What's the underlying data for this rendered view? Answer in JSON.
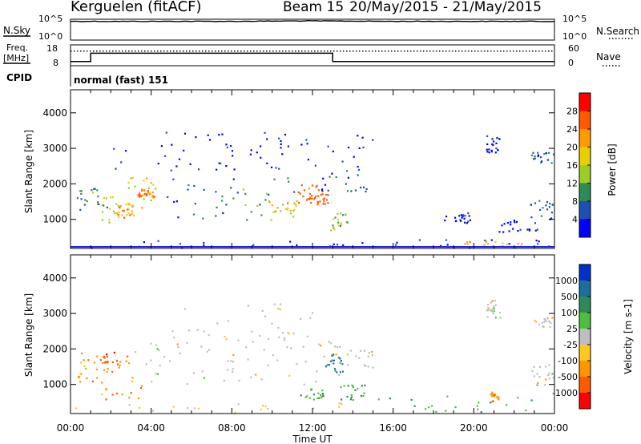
{
  "header": {
    "site": "Kerguelen (fitACF)",
    "beam_label": "Beam 15",
    "date_range": "20/May/2015 - 21/May/2015"
  },
  "noise_panel": {
    "left_label": "N.Sky",
    "left_ticks": [
      "10^5",
      "10^0"
    ],
    "right_ticks": [
      "10^5",
      "10^0"
    ],
    "right_label": "N.Search"
  },
  "freq_panel": {
    "left_label_1": "Freq.",
    "left_label_2": "[MHz]",
    "left_ticks": [
      "18",
      "8"
    ],
    "right_ticks": [
      "60",
      "0"
    ],
    "right_label": "Nave"
  },
  "cpid": {
    "label": "CPID",
    "mode": "normal (fast) 151"
  },
  "xlabel": "Time UT",
  "colors": {
    "grey_scatter": "#bebebe",
    "axis": "#000000"
  },
  "chart_data": [
    {
      "type": "line",
      "title": "N.Sky / N.Search",
      "x_range": [
        0,
        24
      ],
      "series": [
        {
          "name": "N.Sky",
          "x": [
            0,
            4,
            8,
            12,
            16,
            20,
            24
          ],
          "y": [
            4.5,
            4.5,
            4.5,
            4.6,
            4.5,
            4.5,
            4.5
          ]
        }
      ]
    },
    {
      "type": "line",
      "title": "Freq. [MHz] / Nave",
      "x_range": [
        0,
        24
      ],
      "ylim": [
        8,
        18
      ],
      "series": [
        {
          "name": "Freq.",
          "x": [
            0,
            1.0,
            1.0,
            13.0,
            13.0,
            24
          ],
          "y": [
            10,
            10,
            14,
            14,
            10,
            10
          ]
        },
        {
          "name": "Nave",
          "x": [
            0,
            24
          ],
          "y": [
            15,
            15
          ]
        }
      ]
    },
    {
      "type": "heatmap",
      "title": "Power [dB]",
      "ylabel": "Slant Range [km]",
      "xlabel": "Time UT",
      "x_range": [
        0,
        24
      ],
      "ylim": [
        180,
        4650
      ],
      "yticks": [
        1000,
        2000,
        3000,
        4000
      ],
      "xticks": [
        "00:00",
        "04:00",
        "08:00",
        "12:00",
        "16:00",
        "20:00",
        "00:00"
      ],
      "colorbar": {
        "label": "Power [dB]",
        "ticks": [
          "28",
          "24",
          "20",
          "16",
          "12",
          "8",
          "4"
        ],
        "colors": [
          "#ff0000",
          "#ff5a00",
          "#ff9a00",
          "#e8d000",
          "#9ccc28",
          "#2e8b57",
          "#1e4fb4",
          "#0000ff"
        ]
      },
      "regions": [
        {
          "t0": 0.3,
          "t1": 1.8,
          "r0": 1200,
          "r1": 1900,
          "level": 3
        },
        {
          "t0": 1.5,
          "t1": 2.9,
          "r0": 900,
          "r1": 1700,
          "level": 4
        },
        {
          "t0": 2.2,
          "t1": 3.2,
          "r0": 1050,
          "r1": 1500,
          "level": 6
        },
        {
          "t0": 2.8,
          "t1": 4.4,
          "r0": 1300,
          "r1": 2200,
          "level": 5
        },
        {
          "t0": 3.3,
          "t1": 4.2,
          "r0": 1650,
          "r1": 1850,
          "level": 7
        },
        {
          "t0": 4.2,
          "t1": 8.2,
          "r0": 1000,
          "r1": 2200,
          "level": 2
        },
        {
          "t0": 8.2,
          "t1": 11.4,
          "r0": 1000,
          "r1": 2300,
          "level": 3
        },
        {
          "t0": 9.8,
          "t1": 11.2,
          "r0": 1150,
          "r1": 1550,
          "level": 5
        },
        {
          "t0": 11.2,
          "t1": 12.6,
          "r0": 1300,
          "r1": 2000,
          "level": 7
        },
        {
          "t0": 11.8,
          "t1": 12.9,
          "r0": 1450,
          "r1": 1750,
          "level": 8
        },
        {
          "t0": 12.4,
          "t1": 14.9,
          "r0": 1800,
          "r1": 2500,
          "level": 2
        },
        {
          "t0": 12.8,
          "t1": 13.8,
          "r0": 700,
          "r1": 1200,
          "level": 4
        },
        {
          "t0": 2.0,
          "t1": 15.0,
          "r0": 2400,
          "r1": 3500,
          "level": 1
        },
        {
          "t0": 0.0,
          "t1": 15.0,
          "r0": 200,
          "r1": 420,
          "level": 1
        },
        {
          "t0": 15.0,
          "t1": 24.0,
          "r0": 200,
          "r1": 450,
          "level": 1
        },
        {
          "t0": 19.5,
          "t1": 23.2,
          "r0": 220,
          "r1": 400,
          "level": 5
        },
        {
          "t0": 20.6,
          "t1": 21.3,
          "r0": 2900,
          "r1": 3400,
          "level": 1
        },
        {
          "t0": 22.8,
          "t1": 24.0,
          "r0": 2600,
          "r1": 2900,
          "level": 2
        },
        {
          "t0": 22.8,
          "t1": 24.0,
          "r0": 1000,
          "r1": 1600,
          "level": 2
        },
        {
          "t0": 18.5,
          "t1": 19.8,
          "r0": 900,
          "r1": 1200,
          "level": 1
        },
        {
          "t0": 21.2,
          "t1": 23.2,
          "r0": 600,
          "r1": 1000,
          "level": 1
        }
      ]
    },
    {
      "type": "heatmap",
      "title": "Velocity [m s-1]",
      "ylabel": "Slant Range [km]",
      "xlabel": "Time UT",
      "x_range": [
        0,
        24
      ],
      "ylim": [
        180,
        4650
      ],
      "yticks": [
        1000,
        2000,
        3000,
        4000
      ],
      "xticks": [
        "00:00",
        "04:00",
        "08:00",
        "12:00",
        "16:00",
        "20:00",
        "00:00"
      ],
      "colorbar": {
        "label": "Velocity [m s-1]",
        "ticks": [
          "1000",
          "500",
          "100",
          "25",
          "-25",
          "-100",
          "-500",
          "-1000"
        ],
        "colors": [
          "#0032c8",
          "#1e6e9c",
          "#2e8b57",
          "#4cc03c",
          "#bebebe",
          "#ffc820",
          "#ff9600",
          "#ff5a00",
          "#ff0000"
        ]
      },
      "regions": [
        {
          "t0": 0.3,
          "t1": 1.6,
          "r0": 1100,
          "r1": 1900,
          "level": 6
        },
        {
          "t0": 1.5,
          "t1": 3.6,
          "r0": 600,
          "r1": 1700,
          "level": 6
        },
        {
          "t0": 1.6,
          "t1": 2.8,
          "r0": 1300,
          "r1": 2000,
          "level": 7
        },
        {
          "t0": 3.0,
          "t1": 13.5,
          "r0": 1000,
          "r1": 2300,
          "level": 4
        },
        {
          "t0": 5.0,
          "t1": 12.0,
          "r0": 2300,
          "r1": 3300,
          "level": 4
        },
        {
          "t0": 12.6,
          "t1": 13.5,
          "r0": 1300,
          "r1": 1900,
          "level": 2
        },
        {
          "t0": 13.0,
          "t1": 15.0,
          "r0": 1500,
          "r1": 2100,
          "level": 4
        },
        {
          "t0": 13.2,
          "t1": 14.6,
          "r0": 550,
          "r1": 1000,
          "level": 3
        },
        {
          "t0": 11.3,
          "t1": 12.5,
          "r0": 600,
          "r1": 900,
          "level": 3
        },
        {
          "t0": 15.0,
          "t1": 23.0,
          "r0": 200,
          "r1": 700,
          "level": 3
        },
        {
          "t0": 0.0,
          "t1": 14.0,
          "r0": 200,
          "r1": 500,
          "level": 5
        },
        {
          "t0": 22.8,
          "t1": 24.0,
          "r0": 1000,
          "r1": 1600,
          "level": 4
        },
        {
          "t0": 22.8,
          "t1": 24.0,
          "r0": 2600,
          "r1": 2900,
          "level": 4
        },
        {
          "t0": 20.6,
          "t1": 21.3,
          "r0": 2900,
          "r1": 3400,
          "level": 4
        },
        {
          "t0": 20.8,
          "t1": 21.2,
          "r0": 500,
          "r1": 800,
          "level": 6
        }
      ]
    }
  ]
}
